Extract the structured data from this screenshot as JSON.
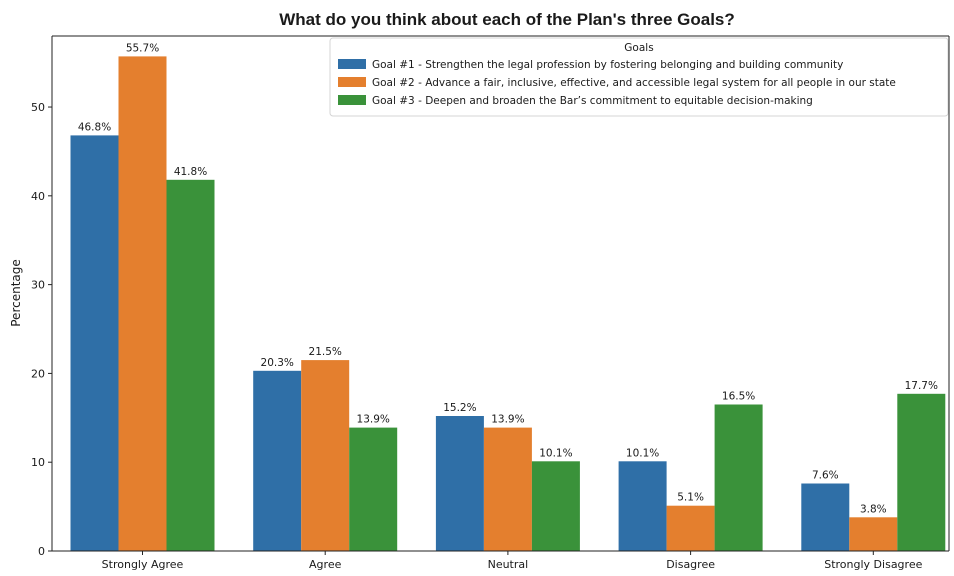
{
  "chart_data": {
    "type": "bar",
    "title": "What do you think about each of the Plan's three Goals?",
    "xlabel": "",
    "ylabel": "Percentage",
    "categories": [
      "Strongly Agree",
      "Agree",
      "Neutral",
      "Disagree",
      "Strongly Disagree"
    ],
    "ylim": [
      0,
      58
    ],
    "yticks": [
      0,
      10,
      20,
      30,
      40,
      50
    ],
    "grid": false,
    "legend_title": "Goals",
    "legend_position": "top-right",
    "series": [
      {
        "name": "Goal #1 - Strengthen the legal profession by fostering belonging and building community",
        "color": "#2f6fa7",
        "values": [
          46.8,
          20.3,
          15.2,
          10.1,
          7.6
        ],
        "labels": [
          "46.8%",
          "20.3%",
          "15.2%",
          "10.1%",
          "7.6%"
        ]
      },
      {
        "name": "Goal #2 - Advance a fair, inclusive, effective, and accessible legal system for all people in our state",
        "color": "#e47f2e",
        "values": [
          55.7,
          21.5,
          13.9,
          5.1,
          3.8
        ],
        "labels": [
          "55.7%",
          "21.5%",
          "13.9%",
          "5.1%",
          "3.8%"
        ]
      },
      {
        "name": "Goal #3 -  Deepen and broaden the Bar’s commitment to equitable decision-making",
        "color": "#3a923a",
        "values": [
          41.8,
          13.9,
          10.1,
          16.5,
          17.7
        ],
        "labels": [
          "41.8%",
          "13.9%",
          "10.1%",
          "16.5%",
          "17.7%"
        ]
      }
    ]
  }
}
